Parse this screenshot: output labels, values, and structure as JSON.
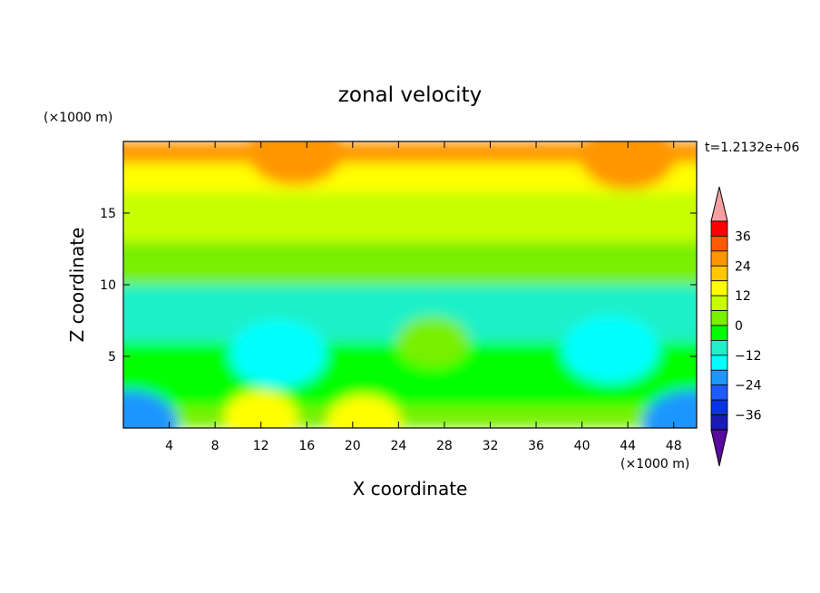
{
  "chart_data": {
    "type": "heatmap",
    "title": "zonal velocity",
    "xlabel": "X coordinate",
    "ylabel": "Z coordinate",
    "x_unit": "(×1000 m)",
    "y_unit": "(×1000 m)",
    "time_label": "t=1.2132e+06",
    "xlim": [
      0,
      50
    ],
    "ylim": [
      0,
      20
    ],
    "x_ticks": [
      "4",
      "8",
      "12",
      "16",
      "20",
      "24",
      "28",
      "32",
      "36",
      "40",
      "44",
      "48"
    ],
    "y_ticks": [
      "5",
      "10",
      "15"
    ],
    "colorbar": {
      "tick_labels": [
        "36",
        "24",
        "12",
        "0",
        "−12",
        "−24",
        "−36"
      ],
      "levels": [
        -42,
        -36,
        -30,
        -24,
        -18,
        -12,
        -6,
        0,
        6,
        12,
        18,
        24,
        30,
        36,
        42
      ],
      "colors": [
        "#5a0a9e",
        "#1a1ab4",
        "#0a32e6",
        "#1e5aff",
        "#1e96ff",
        "#00ffff",
        "#1ef0c8",
        "#00ff00",
        "#78f000",
        "#c8ff00",
        "#ffff00",
        "#ffc800",
        "#ff9600",
        "#ff5a00",
        "#ff0000",
        "#f5a0a0"
      ]
    },
    "field_bands": [
      {
        "z_range": [
          18.5,
          20
        ],
        "value": 24
      },
      {
        "z_range": [
          16.5,
          18.5
        ],
        "value": 16
      },
      {
        "z_range": [
          13,
          16.5
        ],
        "value": 7
      },
      {
        "z_range": [
          10,
          13
        ],
        "value": 1
      },
      {
        "z_range": [
          6,
          10
        ],
        "value": -7
      },
      {
        "z_range": [
          1.5,
          6
        ],
        "value": -5
      },
      {
        "z_range": [
          0,
          1.5
        ],
        "value": 4
      }
    ],
    "features": [
      {
        "name": "cold-core-left",
        "x": 13.5,
        "z": 5.2,
        "value": -18
      },
      {
        "name": "cold-core-right",
        "x": 42.5,
        "z": 5.5,
        "value": -18
      },
      {
        "name": "warm-top-left",
        "x": 15,
        "z": 19.3,
        "value": 26
      },
      {
        "name": "warm-top-right",
        "x": 44,
        "z": 19,
        "value": 24
      },
      {
        "name": "green-cell-center",
        "x": 27,
        "z": 6,
        "value": 4
      },
      {
        "name": "yellow-cell-bottom-left",
        "x": 12,
        "z": 0.8,
        "value": 12
      },
      {
        "name": "yellow-cell-bottom-mid",
        "x": 21,
        "z": 0.5,
        "value": 12
      },
      {
        "name": "blue-corner-left",
        "x": 0.5,
        "z": 0.3,
        "value": -20
      },
      {
        "name": "blue-corner-right",
        "x": 49.5,
        "z": 0.3,
        "value": -20
      }
    ]
  }
}
